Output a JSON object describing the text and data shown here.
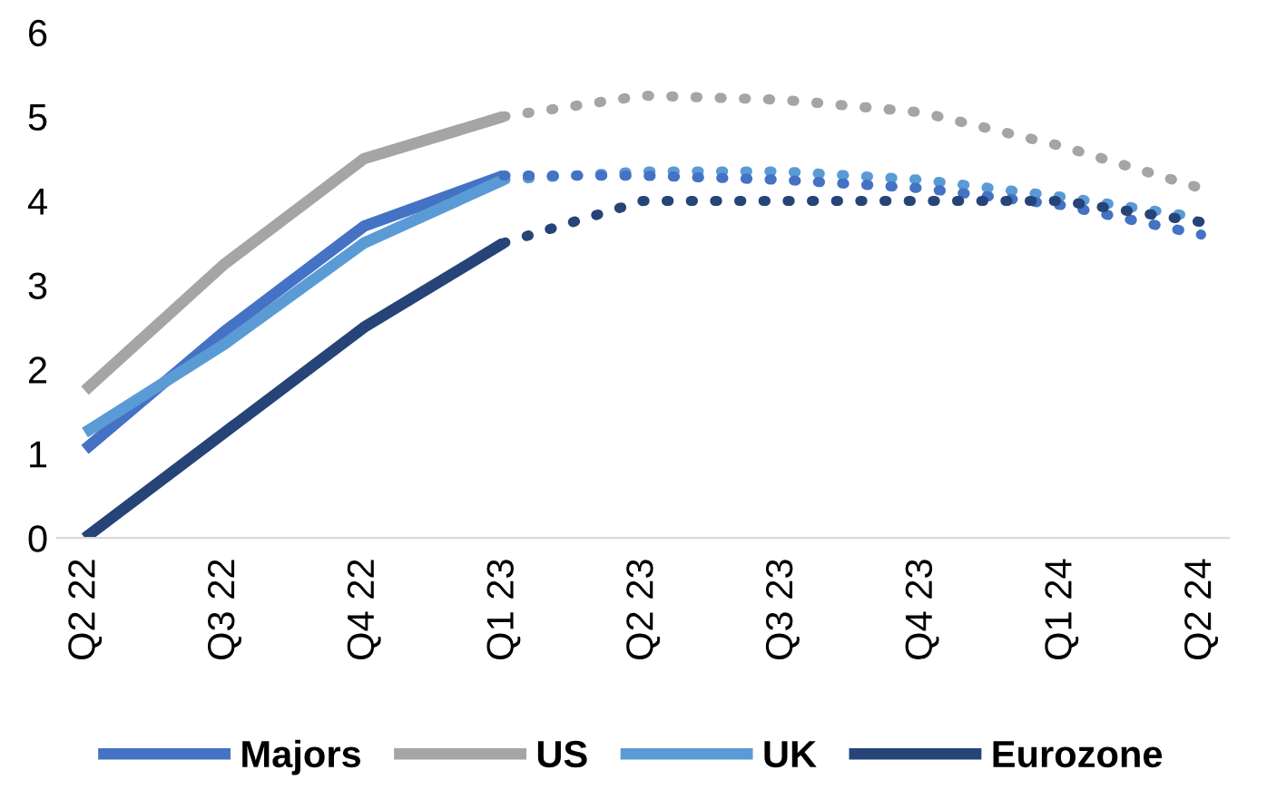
{
  "chart_data": {
    "type": "line",
    "categories": [
      "Q2 22",
      "Q3 22",
      "Q4 22",
      "Q1 23",
      "Q2 23",
      "Q3 23",
      "Q4 23",
      "Q1 24",
      "Q2 24"
    ],
    "ylim": [
      0,
      6
    ],
    "yticks": [
      0,
      1,
      2,
      3,
      4,
      5,
      6
    ],
    "grid": false,
    "legend": "bottom",
    "series": [
      {
        "name": "Majors",
        "color": "#4472c4",
        "line_style": "solid",
        "values": [
          1.05,
          2.45,
          3.7,
          4.3,
          null,
          null,
          null,
          null,
          null
        ]
      },
      {
        "name": "US",
        "color": "#a5a5a5",
        "line_style": "solid",
        "values": [
          1.75,
          3.25,
          4.5,
          5.0,
          null,
          null,
          null,
          null,
          null
        ]
      },
      {
        "name": "UK",
        "color": "#5b9bd5",
        "line_style": "solid",
        "values": [
          1.25,
          2.3,
          3.5,
          4.25,
          null,
          null,
          null,
          null,
          null
        ]
      },
      {
        "name": "Eurozone",
        "color": "#264478",
        "line_style": "solid",
        "values": [
          0,
          1.25,
          2.5,
          3.5,
          null,
          null,
          null,
          null,
          null
        ]
      },
      {
        "color": "#a5a5a5",
        "line_style": "dotted",
        "values": [
          null,
          null,
          null,
          5.0,
          5.25,
          5.2,
          5.05,
          4.65,
          4.15
        ]
      },
      {
        "color": "#5b9bd5",
        "line_style": "dotted",
        "values": [
          null,
          null,
          null,
          4.25,
          4.35,
          4.35,
          4.25,
          4.05,
          3.8
        ]
      },
      {
        "color": "#4472c4",
        "line_style": "dotted",
        "values": [
          null,
          null,
          null,
          4.3,
          4.3,
          4.25,
          4.15,
          3.95,
          3.6
        ]
      },
      {
        "color": "#264478",
        "line_style": "dotted",
        "values": [
          null,
          null,
          null,
          3.5,
          4.0,
          4.0,
          4.0,
          4.0,
          3.75
        ]
      }
    ]
  }
}
